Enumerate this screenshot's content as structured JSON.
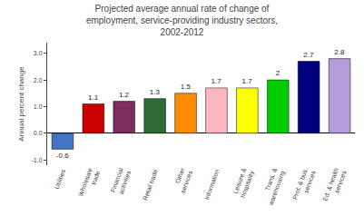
{
  "chart_data": {
    "type": "bar",
    "title": "Projected average annual rate of change of\nemployment, service-providing industry sectors,\n2002-2012",
    "ylabel": "Annual percent change",
    "categories": [
      "Utilities",
      "Wholesale\ntrade",
      "Financial\nactivities",
      "Retail trade",
      "Other\nservices",
      "Information",
      "Leisure &\nhospitality",
      "Trans. &\nwarehousing",
      "Prof. & bus.\nservices",
      "Ed. & health\nservices"
    ],
    "values": [
      -0.6,
      1.1,
      1.2,
      1.3,
      1.5,
      1.7,
      1.7,
      2.0,
      2.7,
      2.8
    ],
    "colors": [
      "#4472c4",
      "#cc0000",
      "#7b2d5e",
      "#2e6b35",
      "#ff8c00",
      "#ffb6c1",
      "#ffff00",
      "#00cc00",
      "#000080",
      "#b39ddb"
    ],
    "ylim": [
      -1.2,
      3.4
    ],
    "yticks": [
      {
        "value": -1.0,
        "label": "-1.0"
      },
      {
        "value": 0.0,
        "label": "0.0"
      },
      {
        "value": 1.0,
        "label": "1.0"
      },
      {
        "value": 2.0,
        "label": "2.0"
      },
      {
        "value": 3.0,
        "label": "3.0"
      }
    ],
    "data_labels": true,
    "grid": false
  }
}
